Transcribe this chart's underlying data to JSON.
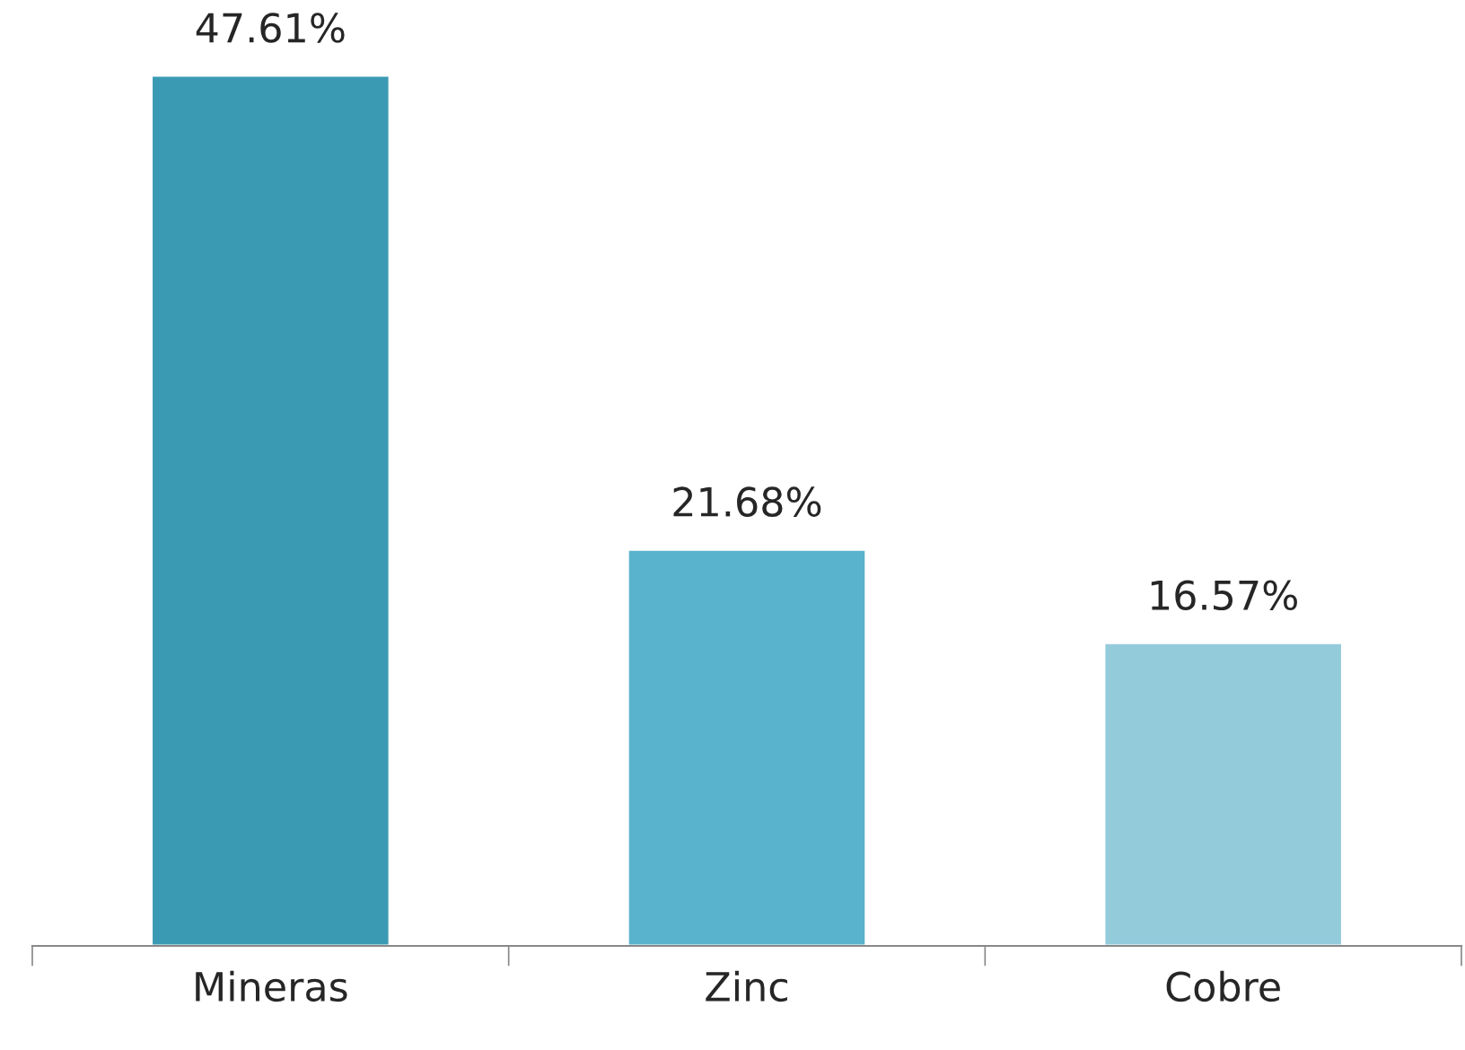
{
  "chart_data": {
    "type": "bar",
    "categories": [
      "Mineras",
      "Zinc",
      "Cobre"
    ],
    "values": [
      47.61,
      21.68,
      16.57
    ],
    "colors": [
      "#3a9ab4",
      "#5ab3cc",
      "#93cbdb"
    ],
    "value_labels": [
      "47.61%",
      "21.68%",
      "16.57%"
    ],
    "grid": false,
    "legend": false
  }
}
